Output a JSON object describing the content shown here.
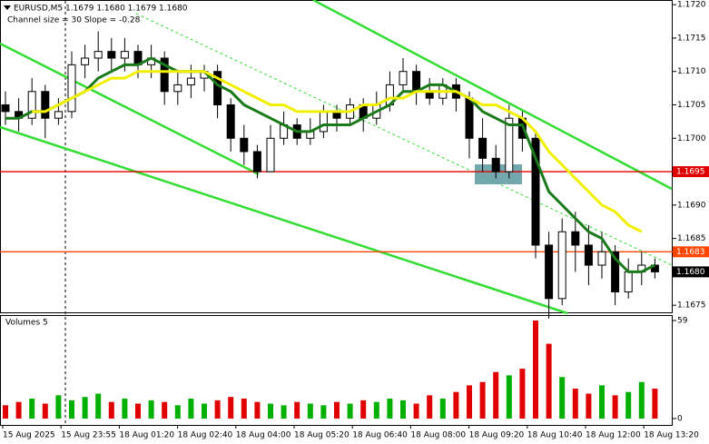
{
  "chart_data": {
    "type": "candlestick",
    "title": "EURUSD,M5  1.1679 1.1680 1.1679 1.1680",
    "subtitle": "Channel size = 30 Slope = -0.28",
    "volume_title": "Volumes 5",
    "time_labels": [
      "15 Aug 2025",
      "15 Aug 23:55",
      "18 Aug 01:20",
      "18 Aug 02:40",
      "18 Aug 04:00",
      "18 Aug 05:20",
      "18 Aug 06:40",
      "18 Aug 08:00",
      "18 Aug 09:20",
      "18 Aug 10:40",
      "18 Aug 12:00",
      "18 Aug 13:20"
    ],
    "open": [
      1.1705,
      1.1704,
      1.1703,
      1.1707,
      1.1703,
      1.1704,
      1.1711,
      1.1712,
      1.1713,
      1.1712,
      1.1713,
      1.1711,
      1.1712,
      1.1707,
      1.1708,
      1.1709,
      1.171,
      1.1705,
      1.17,
      1.1698,
      1.1695,
      1.17,
      1.1702,
      1.17,
      1.1701,
      1.1704,
      1.1703,
      1.1705,
      1.1703,
      1.1705,
      1.1708,
      1.171,
      1.1707,
      1.1706,
      1.1708,
      1.1706,
      1.17,
      1.1697,
      1.1695,
      1.1703,
      1.17,
      1.1684,
      1.1676,
      1.1686,
      1.1684,
      1.1681,
      1.1683,
      1.1677,
      1.168,
      1.1681
    ],
    "high": [
      1.1707,
      1.1706,
      1.1709,
      1.1708,
      1.1706,
      1.1713,
      1.1714,
      1.1716,
      1.1715,
      1.1715,
      1.1714,
      1.1714,
      1.1713,
      1.171,
      1.1711,
      1.1711,
      1.1711,
      1.1706,
      1.1702,
      1.1699,
      1.1702,
      1.1704,
      1.1703,
      1.1703,
      1.1705,
      1.1705,
      1.1706,
      1.1706,
      1.1707,
      1.171,
      1.1712,
      1.1711,
      1.1709,
      1.1709,
      1.1709,
      1.1707,
      1.1703,
      1.1699,
      1.1705,
      1.1704,
      1.1701,
      1.1686,
      1.1688,
      1.1689,
      1.1687,
      1.1686,
      1.1684,
      1.1682,
      1.1683,
      1.1682
    ],
    "low": [
      1.1702,
      1.1701,
      1.1702,
      1.17,
      1.1702,
      1.1703,
      1.1709,
      1.171,
      1.171,
      1.171,
      1.1709,
      1.1709,
      1.1705,
      1.1705,
      1.1706,
      1.1707,
      1.1703,
      1.1698,
      1.1696,
      1.1694,
      1.1695,
      1.1699,
      1.1699,
      1.1699,
      1.17,
      1.1701,
      1.1702,
      1.1701,
      1.1702,
      1.1704,
      1.1707,
      1.1705,
      1.1705,
      1.1705,
      1.1704,
      1.1697,
      1.1695,
      1.1694,
      1.1694,
      1.1698,
      1.1682,
      1.1673,
      1.1675,
      1.168,
      1.1678,
      1.1679,
      1.1675,
      1.1676,
      1.1678,
      1.1679
    ],
    "close": [
      1.1704,
      1.1703,
      1.1707,
      1.1703,
      1.1704,
      1.1711,
      1.1712,
      1.1713,
      1.1712,
      1.1713,
      1.1711,
      1.1712,
      1.1707,
      1.1708,
      1.1709,
      1.171,
      1.1705,
      1.17,
      1.1698,
      1.1695,
      1.17,
      1.1702,
      1.17,
      1.1701,
      1.1704,
      1.1703,
      1.1705,
      1.1703,
      1.1705,
      1.1708,
      1.171,
      1.1707,
      1.1706,
      1.1708,
      1.1706,
      1.17,
      1.1697,
      1.1695,
      1.1703,
      1.17,
      1.1684,
      1.1676,
      1.1686,
      1.1684,
      1.1681,
      1.1683,
      1.1677,
      1.168,
      1.1681,
      1.168
    ],
    "volume": [
      8,
      10,
      12,
      9,
      14,
      11,
      13,
      15,
      10,
      12,
      9,
      11,
      10,
      8,
      12,
      9,
      11,
      13,
      12,
      10,
      9,
      8,
      10,
      9,
      8,
      10,
      9,
      11,
      10,
      12,
      11,
      9,
      14,
      12,
      16,
      20,
      22,
      28,
      26,
      30,
      59,
      45,
      25,
      18,
      15,
      20,
      14,
      16,
      22,
      18
    ],
    "series": [
      {
        "color": "#1a7a1a",
        "values": [
          1.1703,
          1.1703,
          1.1704,
          1.1704,
          1.1705,
          1.1706,
          1.1707,
          1.1709,
          1.171,
          1.1711,
          1.1711,
          1.1712,
          1.1711,
          1.171,
          1.171,
          1.171,
          1.1708,
          1.1707,
          1.1705,
          1.1704,
          1.1703,
          1.1702,
          1.1701,
          1.1701,
          1.1702,
          1.1702,
          1.1702,
          1.1703,
          1.1704,
          1.1705,
          1.1707,
          1.1707,
          1.1708,
          1.1708,
          1.1707,
          1.1706,
          1.1704,
          1.1703,
          1.1702,
          1.1702,
          1.1697,
          1.1692,
          1.169,
          1.1688,
          1.1686,
          1.1685,
          1.1682,
          1.168,
          1.168,
          1.1681
        ]
      },
      {
        "color": "#f0f000",
        "values": [
          null,
          null,
          1.1704,
          1.1704,
          1.1705,
          1.1706,
          1.1707,
          1.1708,
          1.1709,
          1.1709,
          1.171,
          1.171,
          1.171,
          1.171,
          1.171,
          1.171,
          1.1709,
          1.1708,
          1.1707,
          1.1706,
          1.1705,
          1.1705,
          1.1704,
          1.1704,
          1.1704,
          1.1704,
          1.1704,
          1.1705,
          1.1705,
          1.1706,
          1.1706,
          1.1707,
          1.1707,
          1.1707,
          1.1707,
          1.1706,
          1.1705,
          1.1705,
          1.1704,
          1.1703,
          1.1701,
          1.1698,
          1.1696,
          1.1694,
          1.1692,
          1.169,
          1.1689,
          1.1687,
          1.1686,
          null
        ]
      }
    ],
    "ylim": [
      1.16738,
      1.17207
    ],
    "yticks": [
      {
        "value": 1.172,
        "label": "1.1720"
      },
      {
        "value": 1.1715,
        "label": "1.1715"
      },
      {
        "value": 1.171,
        "label": "1.1710"
      },
      {
        "value": 1.1705,
        "label": "1.1705"
      },
      {
        "value": 1.17,
        "label": "1.1700"
      },
      {
        "value": 1.169,
        "label": "1.1690"
      },
      {
        "value": 1.1685,
        "label": "1.1685"
      },
      {
        "value": 1.1675,
        "label": "1.1675"
      }
    ],
    "levels": [
      {
        "value": 1.1695,
        "label": "1.1695",
        "color": "#e00000"
      },
      {
        "value": 1.1683,
        "label": "1.1683",
        "color": "#ff4500"
      },
      {
        "value": 1.168,
        "label": "1.1680",
        "color": "#000000"
      }
    ],
    "vlim": [
      0,
      59
    ],
    "vticks": [
      0,
      59
    ]
  }
}
